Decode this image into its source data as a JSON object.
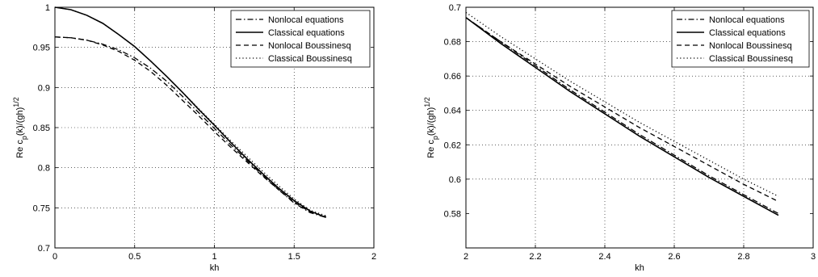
{
  "chart_data": [
    {
      "type": "line",
      "xlabel": "kh",
      "ylabel_main": "Re c",
      "ylabel_sub": "p",
      "ylabel_rest": "(k)/(gh)",
      "ylabel_sup": "1/2",
      "xlim": [
        0,
        2
      ],
      "ylim": [
        0.7,
        1.0
      ],
      "xticks": [
        0,
        0.5,
        1,
        1.5,
        2
      ],
      "yticks": [
        0.7,
        0.75,
        0.8,
        0.85,
        0.9,
        0.95,
        1
      ],
      "xtick_labels": [
        "0",
        "0.5",
        "1",
        "1.5",
        "2"
      ],
      "ytick_labels": [
        "0.7",
        "0.75",
        "0.8",
        "0.85",
        "0.9",
        "0.95",
        "1"
      ],
      "grid": true,
      "legend_position": "top-right",
      "series": [
        {
          "name": "Nonlocal equations",
          "style": "dashdot",
          "x": [
            0,
            0.1,
            0.2,
            0.3,
            0.4,
            0.5,
            0.6,
            0.7,
            0.8,
            0.9,
            1.0,
            1.1,
            1.2,
            1.3,
            1.4,
            1.5,
            1.6,
            1.7
          ],
          "y": [
            0.963,
            0.962,
            0.959,
            0.954,
            0.947,
            0.937,
            0.924,
            0.908,
            0.889,
            0.869,
            0.849,
            0.829,
            0.81,
            0.791,
            0.773,
            0.756,
            0.744,
            0.738
          ]
        },
        {
          "name": "Classical equations",
          "style": "solid",
          "x": [
            0,
            0.1,
            0.2,
            0.3,
            0.4,
            0.5,
            0.6,
            0.7,
            0.8,
            0.9,
            1.0,
            1.1,
            1.2,
            1.3,
            1.4,
            1.5,
            1.6,
            1.7
          ],
          "y": [
            1.0,
            0.997,
            0.99,
            0.98,
            0.966,
            0.951,
            0.933,
            0.914,
            0.894,
            0.873,
            0.853,
            0.832,
            0.812,
            0.793,
            0.775,
            0.759,
            0.746,
            0.738
          ]
        },
        {
          "name": "Nonlocal Boussinesq",
          "style": "dashed",
          "x": [
            0,
            0.1,
            0.2,
            0.3,
            0.4,
            0.5,
            0.6,
            0.7,
            0.8,
            0.9,
            1.0,
            1.1,
            1.2,
            1.3,
            1.4,
            1.5,
            1.6,
            1.7
          ],
          "y": [
            0.963,
            0.962,
            0.959,
            0.953,
            0.945,
            0.934,
            0.92,
            0.903,
            0.884,
            0.865,
            0.845,
            0.826,
            0.808,
            0.79,
            0.773,
            0.757,
            0.745,
            0.739
          ]
        },
        {
          "name": "Classical Boussinesq",
          "style": "dotted",
          "x": [
            0,
            0.1,
            0.2,
            0.3,
            0.4,
            0.5,
            0.6,
            0.7,
            0.8,
            0.9,
            1.0,
            1.1,
            1.2,
            1.3,
            1.4,
            1.5,
            1.6,
            1.7
          ],
          "y": [
            1.0,
            0.997,
            0.99,
            0.98,
            0.966,
            0.951,
            0.933,
            0.914,
            0.894,
            0.874,
            0.854,
            0.834,
            0.815,
            0.796,
            0.778,
            0.761,
            0.747,
            0.74
          ]
        }
      ]
    },
    {
      "type": "line",
      "xlabel": "kh",
      "ylabel_main": "Re c",
      "ylabel_sub": "p",
      "ylabel_rest": "(k)/(gh)",
      "ylabel_sup": "1/2",
      "xlim": [
        2,
        3
      ],
      "ylim": [
        0.56,
        0.7
      ],
      "xticks": [
        2,
        2.2,
        2.4,
        2.6,
        2.8,
        3
      ],
      "yticks": [
        0.58,
        0.6,
        0.62,
        0.64,
        0.66,
        0.68,
        0.7
      ],
      "xtick_labels": [
        "2",
        "2.2",
        "2.4",
        "2.6",
        "2.8",
        "3"
      ],
      "ytick_labels": [
        "0.58",
        "0.6",
        "0.62",
        "0.64",
        "0.66",
        "0.68",
        "0.7"
      ],
      "grid": true,
      "legend_position": "top-right",
      "series": [
        {
          "name": "Nonlocal equations",
          "style": "dashdot",
          "x": [
            2.0,
            2.1,
            2.2,
            2.3,
            2.4,
            2.5,
            2.6,
            2.7,
            2.8,
            2.9
          ],
          "y": [
            0.694,
            0.68,
            0.666,
            0.652,
            0.639,
            0.626,
            0.614,
            0.602,
            0.591,
            0.58
          ]
        },
        {
          "name": "Classical equations",
          "style": "solid",
          "x": [
            2.0,
            2.1,
            2.2,
            2.3,
            2.4,
            2.5,
            2.6,
            2.7,
            2.8,
            2.9
          ],
          "y": [
            0.694,
            0.679,
            0.665,
            0.651,
            0.638,
            0.625,
            0.613,
            0.601,
            0.59,
            0.579
          ]
        },
        {
          "name": "Nonlocal Boussinesq",
          "style": "dashed",
          "x": [
            2.0,
            2.1,
            2.2,
            2.3,
            2.4,
            2.5,
            2.6,
            2.7,
            2.8,
            2.9
          ],
          "y": [
            0.694,
            0.68,
            0.667,
            0.654,
            0.642,
            0.63,
            0.619,
            0.608,
            0.597,
            0.587
          ]
        },
        {
          "name": "Classical Boussinesq",
          "style": "dotted",
          "x": [
            2.0,
            2.1,
            2.2,
            2.3,
            2.4,
            2.5,
            2.6,
            2.7,
            2.8,
            2.9
          ],
          "y": [
            0.697,
            0.683,
            0.67,
            0.657,
            0.645,
            0.633,
            0.622,
            0.611,
            0.6,
            0.59
          ]
        }
      ]
    }
  ]
}
